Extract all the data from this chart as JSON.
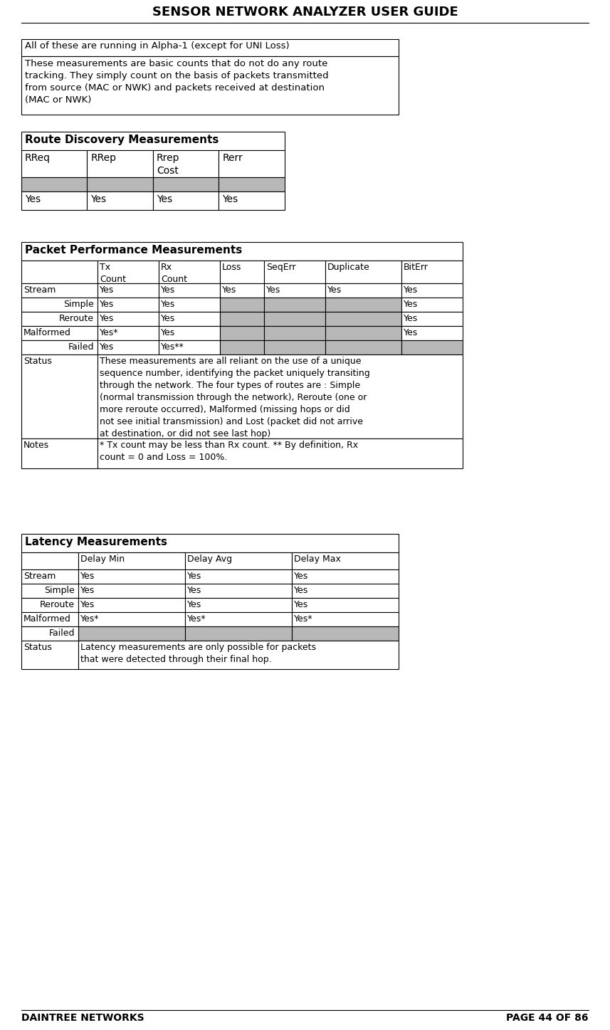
{
  "title": "SENSOR NETWORK ANALYZER USER GUIDE",
  "footer_left": "DAINTREE NETWORKS",
  "footer_right": "PAGE 44 OF 86",
  "intro_text1": "All of these are running in Alpha-1 (except for UNI Loss)",
  "intro_text2": "These measurements are basic counts that do not do any route\ntracking. They simply count on the basis of packets transmitted\nfrom source (MAC or NWK) and packets received at destination\n(MAC or NWK)",
  "s1_title": "Route Discovery Measurements",
  "s1_cols": [
    "RReq",
    "RRep",
    "Rrep\nCost",
    "Rerr"
  ],
  "s1_yes": [
    "Yes",
    "Yes",
    "Yes",
    "Yes"
  ],
  "s2_title": "Packet Performance Measurements",
  "s2_cols": [
    "",
    "Tx\nCount",
    "Rx\nCount",
    "Loss",
    "SeqErr",
    "Duplicate",
    "BitErr"
  ],
  "s2_rows": [
    [
      "Stream",
      "Yes",
      "Yes",
      "Yes",
      "Yes",
      "Yes",
      "Yes"
    ],
    [
      "Simple",
      "Yes",
      "Yes",
      "",
      "",
      "",
      "Yes"
    ],
    [
      "Reroute",
      "Yes",
      "Yes",
      "",
      "",
      "",
      "Yes"
    ],
    [
      "Malformed",
      "Yes*",
      "Yes",
      "",
      "",
      "",
      "Yes"
    ],
    [
      "Failed",
      "Yes",
      "Yes**",
      "",
      "",
      "",
      ""
    ]
  ],
  "s2_gray_cols": [
    3,
    4,
    5
  ],
  "s2_status_text": "These measurements are all reliant on the use of a unique\nsequence number, identifying the packet uniquely transiting\nthrough the network. The four types of routes are : Simple\n(normal transmission through the network), Reroute (one or\nmore reroute occurred), Malformed (missing hops or did\nnot see initial transmission) and Lost (packet did not arrive\nat destination, or did not see last hop)",
  "s2_notes_text": "* Tx count may be less than Rx count. ** By definition, Rx\ncount = 0 and Loss = 100%.",
  "s3_title": "Latency Measurements",
  "s3_cols": [
    "",
    "Delay Min",
    "Delay Avg",
    "Delay Max"
  ],
  "s3_rows": [
    [
      "Stream",
      "Yes",
      "Yes",
      "Yes"
    ],
    [
      "Simple",
      "Yes",
      "Yes",
      "Yes"
    ],
    [
      "Reroute",
      "Yes",
      "Yes",
      "Yes"
    ],
    [
      "Malformed",
      "Yes*",
      "Yes*",
      "Yes*"
    ],
    [
      "Failed",
      "",
      "",
      ""
    ]
  ],
  "s3_status_text": "Latency measurements are only possible for packets\nthat were detected through their final hop.",
  "gray": "#b8b8b8",
  "white": "#ffffff",
  "black": "#000000"
}
